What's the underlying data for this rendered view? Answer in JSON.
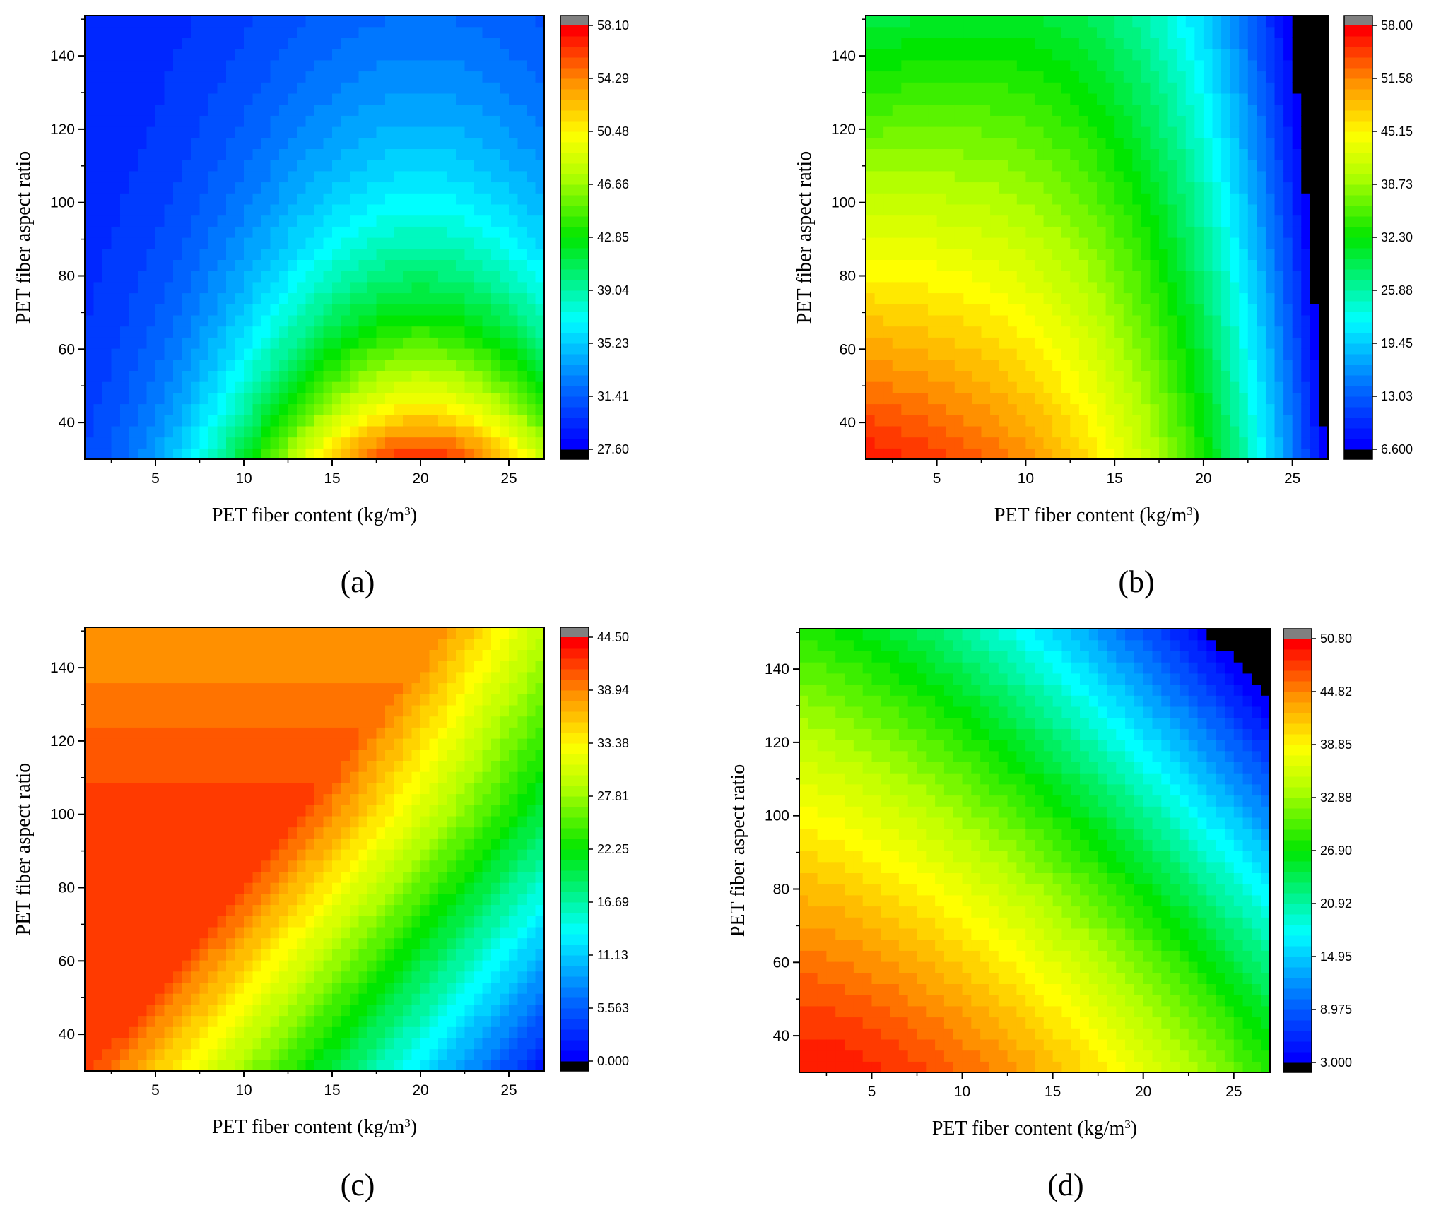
{
  "figure": {
    "captions": [
      "(a)",
      "(b)",
      "(c)",
      "(d)"
    ]
  },
  "chart_data": [
    {
      "panel": "a",
      "type": "heatmap",
      "caption": "(a)",
      "xlabel_main": "PET fiber content (kg/m",
      "xlabel_sup": "3",
      "xlabel_end": ")",
      "ylabel": "PET fiber aspect ratio",
      "xlim": [
        1,
        27
      ],
      "ylim": [
        30,
        151
      ],
      "xticks": [
        5,
        10,
        15,
        20,
        25
      ],
      "yticks": [
        40,
        60,
        80,
        100,
        120,
        140
      ],
      "colorbar_ticks": [
        "58.10",
        "54.29",
        "50.48",
        "46.66",
        "42.85",
        "39.04",
        "35.23",
        "31.41",
        "27.60"
      ],
      "vmin": 27.6,
      "vmax": 58.1,
      "model": "a"
    },
    {
      "panel": "b",
      "type": "heatmap",
      "caption": "(b)",
      "xlabel_main": "PET fiber content (kg/m",
      "xlabel_sup": "3",
      "xlabel_end": ")",
      "ylabel": "PET fiber aspect ratio",
      "xlim": [
        1,
        27
      ],
      "ylim": [
        30,
        151
      ],
      "xticks": [
        5,
        10,
        15,
        20,
        25
      ],
      "yticks": [
        40,
        60,
        80,
        100,
        120,
        140
      ],
      "colorbar_ticks": [
        "58.00",
        "51.58",
        "45.15",
        "38.73",
        "32.30",
        "25.88",
        "19.45",
        "13.03",
        "6.600"
      ],
      "vmin": 6.6,
      "vmax": 58.0,
      "model": "b"
    },
    {
      "panel": "c",
      "type": "heatmap",
      "caption": "(c)",
      "xlabel_main": "PET fiber content (kg/m",
      "xlabel_sup": "3",
      "xlabel_end": ")",
      "ylabel": "PET fiber aspect ratio",
      "xlim": [
        1,
        27
      ],
      "ylim": [
        30,
        151
      ],
      "xticks": [
        5,
        10,
        15,
        20,
        25
      ],
      "yticks": [
        40,
        60,
        80,
        100,
        120,
        140
      ],
      "colorbar_ticks": [
        "44.50",
        "38.94",
        "33.38",
        "27.81",
        "22.25",
        "16.69",
        "11.13",
        "5.563",
        "0.000"
      ],
      "vmin": 0.0,
      "vmax": 44.5,
      "model": "c"
    },
    {
      "panel": "d",
      "type": "heatmap",
      "caption": "(d)",
      "xlabel_main": "PET fiber content (kg/m",
      "xlabel_sup": "3",
      "xlabel_end": ")",
      "ylabel": "PET fiber aspect ratio",
      "xlim": [
        1,
        27
      ],
      "ylim": [
        30,
        151
      ],
      "xticks": [
        5,
        10,
        15,
        20,
        25
      ],
      "yticks": [
        40,
        60,
        80,
        100,
        120,
        140
      ],
      "colorbar_ticks": [
        "50.80",
        "44.82",
        "38.85",
        "32.88",
        "26.90",
        "20.92",
        "14.95",
        "8.975",
        "3.000"
      ],
      "vmin": 3.0,
      "vmax": 50.8,
      "model": "d"
    }
  ]
}
